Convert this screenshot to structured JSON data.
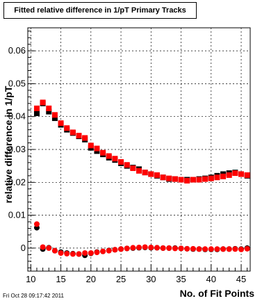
{
  "chart_data": {
    "type": "scatter",
    "title": "Fitted relative difference in 1/pT Primary Tracks",
    "xlabel": "No. of Fit Points",
    "ylabel": "relative difference in 1/pT",
    "xlim": [
      9.5,
      46.5
    ],
    "ylim": [
      -0.007,
      0.067
    ],
    "x_ticks": [
      10,
      15,
      20,
      25,
      30,
      35,
      40,
      45
    ],
    "x_tick_labels": [
      "10",
      "15",
      "20",
      "25",
      "30",
      "35",
      "40",
      "45"
    ],
    "y_ticks": [
      0,
      0.01,
      0.02,
      0.03,
      0.04,
      0.05,
      0.06
    ],
    "y_tick_labels": [
      "0",
      "0.01",
      "0.02",
      "0.03",
      "0.04",
      "0.05",
      "0.06"
    ],
    "grid": true,
    "x": [
      11,
      12,
      13,
      14,
      15,
      16,
      17,
      18,
      19,
      20,
      21,
      22,
      23,
      24,
      25,
      26,
      27,
      28,
      29,
      30,
      31,
      32,
      33,
      34,
      35,
      36,
      37,
      38,
      39,
      40,
      41,
      42,
      43,
      44,
      45,
      46
    ],
    "series": [
      {
        "color": "#000000",
        "marker": "square",
        "values": [
          0.041,
          0.044,
          0.0415,
          0.0395,
          0.0375,
          0.036,
          0.035,
          0.034,
          0.033,
          0.0305,
          0.0295,
          0.0285,
          0.0275,
          0.0268,
          0.0258,
          0.025,
          0.0245,
          0.024,
          0.023,
          0.0225,
          0.022,
          0.0215,
          0.021,
          0.021,
          0.0208,
          0.0208,
          0.0208,
          0.021,
          0.0212,
          0.0215,
          0.022,
          0.0225,
          0.0228,
          0.023,
          0.0225,
          0.022
        ]
      },
      {
        "color": "#ff0000",
        "marker": "square",
        "values": [
          0.0425,
          0.0443,
          0.0425,
          0.0405,
          0.038,
          0.0365,
          0.0352,
          0.0342,
          0.0335,
          0.0312,
          0.0303,
          0.029,
          0.028,
          0.0272,
          0.0262,
          0.0253,
          0.0243,
          0.0235,
          0.023,
          0.0225,
          0.0222,
          0.0215,
          0.0212,
          0.021,
          0.0208,
          0.0205,
          0.0208,
          0.0208,
          0.021,
          0.0212,
          0.0215,
          0.0218,
          0.0222,
          0.0228,
          0.0225,
          0.0222
        ]
      },
      {
        "color": "#000000",
        "marker": "circle",
        "values": [
          0.0062,
          -0.0003,
          0.0001,
          -0.0008,
          -0.0012,
          -0.0015,
          -0.0017,
          -0.0018,
          -0.0022,
          -0.0016,
          -0.0012,
          -0.001,
          -0.0007,
          -0.0005,
          -0.0003,
          -0.0001,
          0.0,
          0.0001,
          0.0002,
          0.0001,
          0.0001,
          0.0,
          0.0,
          0.0,
          -0.0001,
          -0.0002,
          -0.0003,
          -0.0003,
          -0.0004,
          -0.0004,
          -0.0004,
          -0.0003,
          -0.0003,
          -0.0002,
          -0.0003,
          0.0
        ]
      },
      {
        "color": "#ff0000",
        "marker": "circle",
        "values": [
          0.0073,
          0.0003,
          0.0,
          -0.0008,
          -0.0015,
          -0.0017,
          -0.0018,
          -0.0018,
          -0.0015,
          -0.0015,
          -0.0013,
          -0.001,
          -0.0008,
          -0.0005,
          -0.0003,
          -0.0001,
          0.0001,
          0.0002,
          0.0003,
          0.0002,
          0.0001,
          0.0,
          0.0,
          -0.0001,
          -0.0001,
          -0.0002,
          -0.0002,
          -0.0003,
          -0.0003,
          -0.0003,
          -0.0003,
          -0.0003,
          -0.0003,
          -0.0003,
          -0.0004,
          -0.0002
        ]
      }
    ]
  },
  "footer": {
    "timestamp": "Fri Oct 28 09:17:42 2011"
  }
}
